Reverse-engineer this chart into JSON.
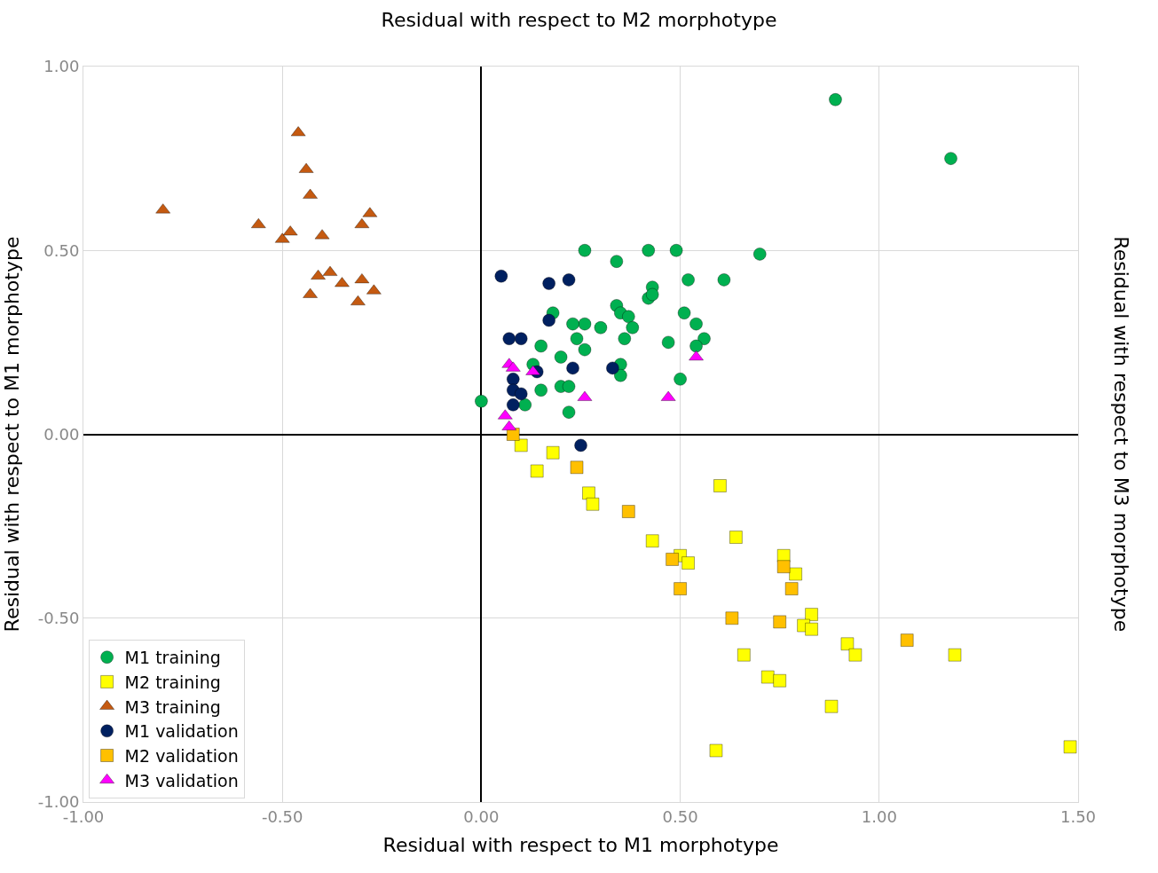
{
  "chart_data": {
    "type": "scatter",
    "title": "Residual with respect to M2 morphotype",
    "xlabel": "Residual with respect to M1 morphotype",
    "ylabel": "Residual with respect to M1 morphotype",
    "y2label": "Residual with respect to M3 morphotype",
    "xlim": [
      -1.0,
      1.5
    ],
    "ylim": [
      -1.0,
      1.0
    ],
    "xticks": [
      {
        "value": -1.0,
        "label": "-1.00"
      },
      {
        "value": -0.5,
        "label": "-0.50"
      },
      {
        "value": 0.0,
        "label": "0.00"
      },
      {
        "value": 0.5,
        "label": "0.50"
      },
      {
        "value": 1.0,
        "label": "1.00"
      },
      {
        "value": 1.5,
        "label": "1.50"
      }
    ],
    "yticks": [
      {
        "value": -1.0,
        "label": "-1.00"
      },
      {
        "value": -0.5,
        "label": "-0.50"
      },
      {
        "value": 0.0,
        "label": "0.00"
      },
      {
        "value": 0.5,
        "label": "0.50"
      },
      {
        "value": 1.0,
        "label": "1.00"
      }
    ],
    "grid": true,
    "legend": "bottom left",
    "series": [
      {
        "name": "M1 training",
        "color": "#00b050",
        "marker": "circle",
        "x": [
          0.26,
          0.34,
          0.42,
          0.49,
          0.7,
          0.52,
          0.61,
          0.43,
          0.42,
          0.43,
          0.34,
          0.35,
          0.37,
          0.38,
          0.36,
          0.51,
          0.54,
          0.56,
          0.54,
          0.47,
          0.3,
          0.26,
          0.23,
          0.18,
          0.24,
          0.26,
          0.15,
          0.2,
          0.13,
          0.35,
          0.35,
          0.15,
          0.2,
          0.22,
          0.22,
          0.11,
          0.0,
          0.5,
          0.89,
          1.18
        ],
        "values": [
          0.5,
          0.47,
          0.5,
          0.5,
          0.49,
          0.42,
          0.42,
          0.4,
          0.37,
          0.38,
          0.35,
          0.33,
          0.32,
          0.29,
          0.26,
          0.33,
          0.3,
          0.26,
          0.24,
          0.25,
          0.29,
          0.3,
          0.3,
          0.33,
          0.26,
          0.23,
          0.24,
          0.21,
          0.19,
          0.19,
          0.16,
          0.12,
          0.13,
          0.13,
          0.06,
          0.08,
          0.09,
          0.15,
          0.91,
          0.75
        ]
      },
      {
        "name": "M2 training",
        "color": "#ffff00",
        "marker": "square",
        "x": [
          0.1,
          0.18,
          0.14,
          0.27,
          0.28,
          0.6,
          0.43,
          0.5,
          0.52,
          0.64,
          0.76,
          0.79,
          0.83,
          0.81,
          0.83,
          0.66,
          0.72,
          0.75,
          0.59,
          0.88,
          0.92,
          0.94,
          1.19,
          1.48
        ],
        "values": [
          -0.03,
          -0.05,
          -0.1,
          -0.16,
          -0.19,
          -0.14,
          -0.29,
          -0.33,
          -0.35,
          -0.28,
          -0.33,
          -0.38,
          -0.49,
          -0.52,
          -0.53,
          -0.6,
          -0.66,
          -0.67,
          -0.86,
          -0.74,
          -0.57,
          -0.6,
          -0.6,
          -0.85
        ]
      },
      {
        "name": "M3 training",
        "color": "#c55a11",
        "marker": "triangle",
        "x": [
          -0.8,
          -0.56,
          -0.5,
          -0.48,
          -0.46,
          -0.44,
          -0.43,
          -0.4,
          -0.41,
          -0.38,
          -0.43,
          -0.35,
          -0.31,
          -0.3,
          -0.3,
          -0.28,
          -0.27
        ],
        "values": [
          0.61,
          0.57,
          0.53,
          0.55,
          0.82,
          0.72,
          0.65,
          0.54,
          0.43,
          0.44,
          0.38,
          0.41,
          0.36,
          0.42,
          0.57,
          0.6,
          0.39
        ]
      },
      {
        "name": "M1 validation",
        "color": "#002060",
        "marker": "circle",
        "x": [
          0.05,
          0.17,
          0.22,
          0.17,
          0.07,
          0.1,
          0.14,
          0.08,
          0.08,
          0.1,
          0.08,
          0.23,
          0.33,
          0.25
        ],
        "values": [
          0.43,
          0.41,
          0.42,
          0.31,
          0.26,
          0.26,
          0.17,
          0.15,
          0.12,
          0.11,
          0.08,
          0.18,
          0.18,
          -0.03
        ]
      },
      {
        "name": "M2 validation",
        "color": "#ffc000",
        "marker": "square",
        "x": [
          0.08,
          0.24,
          0.37,
          0.48,
          0.5,
          0.63,
          0.75,
          0.76,
          0.78,
          1.07
        ],
        "values": [
          0.0,
          -0.09,
          -0.21,
          -0.34,
          -0.42,
          -0.5,
          -0.51,
          -0.36,
          -0.42,
          -0.56
        ]
      },
      {
        "name": "M3 validation",
        "color": "#ff00ff",
        "marker": "triangle",
        "x": [
          0.07,
          0.08,
          0.13,
          0.26,
          0.47,
          0.54,
          0.06,
          0.07
        ],
        "values": [
          0.19,
          0.18,
          0.17,
          0.1,
          0.1,
          0.21,
          0.05,
          0.02
        ]
      }
    ]
  }
}
